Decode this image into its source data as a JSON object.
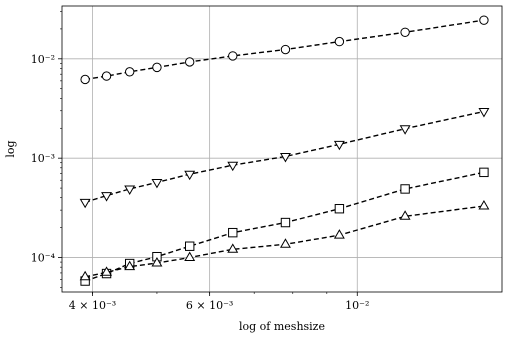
{
  "chart_data": {
    "type": "line",
    "xlabel": "log of meshsize",
    "ylabel": "log",
    "xscale": "log",
    "yscale": "log",
    "xlim": [
      0.0036,
      0.0165
    ],
    "ylim": [
      4.5e-05,
      0.034
    ],
    "grid": "major gridlines on both axes",
    "line_style": "dashed",
    "color": "#000000",
    "x_ticks": [
      {
        "value": 0.004,
        "label": "4 × 10⁻³"
      },
      {
        "value": 0.006,
        "label": "6 × 10⁻³"
      },
      {
        "value": 0.01,
        "label": "10⁻²"
      }
    ],
    "y_ticks": [
      {
        "value": 0.0001,
        "label": "10⁻⁴"
      },
      {
        "value": 0.001,
        "label": "10⁻³"
      },
      {
        "value": 0.01,
        "label": "10⁻²"
      }
    ],
    "x": [
      0.0039,
      0.0042,
      0.00455,
      0.005,
      0.0056,
      0.0065,
      0.0078,
      0.0094,
      0.0118,
      0.0155
    ],
    "series": [
      {
        "marker": "circle",
        "values": [
          0.0062,
          0.0067,
          0.0074,
          0.0082,
          0.0093,
          0.0107,
          0.0124,
          0.0149,
          0.0185,
          0.0245
        ]
      },
      {
        "marker": "triangle-down",
        "values": [
          0.00036,
          0.00042,
          0.00049,
          0.00057,
          0.00069,
          0.00085,
          0.00104,
          0.00138,
          0.00198,
          0.00295
        ]
      },
      {
        "marker": "square",
        "values": [
          5.8e-05,
          6.9e-05,
          8.7e-05,
          0.000102,
          0.00013,
          0.000178,
          0.000225,
          0.00031,
          0.00049,
          0.00072
        ]
      },
      {
        "marker": "triangle-up",
        "values": [
          6.4e-05,
          7.1e-05,
          8.1e-05,
          8.8e-05,
          0.0001,
          0.000121,
          0.000136,
          0.000168,
          0.00026,
          0.00033
        ]
      }
    ]
  }
}
